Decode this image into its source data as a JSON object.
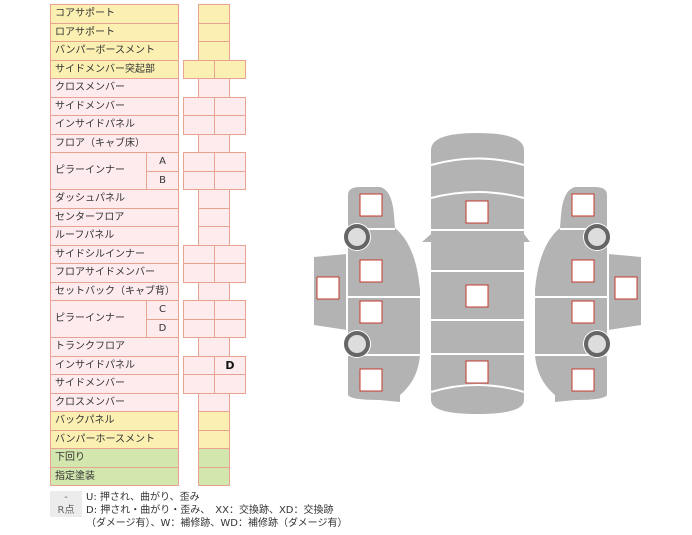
{
  "colors": {
    "front": "#fbf0b2",
    "body": "#fdebee",
    "other": "#d3e6ad",
    "border": "#e7a38f",
    "car": "#b3b3b3",
    "box_border": "#c0392b"
  },
  "rows": [
    {
      "label": "コアサポート",
      "color": "yellow",
      "cells": 1
    },
    {
      "label": "ロアサポート",
      "color": "yellow",
      "cells": 1
    },
    {
      "label": "バンパーボースメント",
      "color": "yellow",
      "cells": 1
    },
    {
      "label": "サイドメンバー突起部",
      "color": "yellow",
      "cells": 2
    },
    {
      "label": "クロスメンバー",
      "color": "pink",
      "cells": 1
    },
    {
      "label": "サイドメンバー",
      "color": "pink",
      "cells": 2
    },
    {
      "label": "インサイドパネル",
      "color": "pink",
      "cells": 2
    },
    {
      "label": "フロア（キャブ床）",
      "color": "pink",
      "cells": 1
    },
    {
      "label": "ピラーインナー",
      "sub": "A",
      "color": "pink",
      "cells": 2
    },
    {
      "label": "",
      "sub": "B",
      "color": "pink",
      "cells": 2
    },
    {
      "label": "ダッシュパネル",
      "color": "pink",
      "cells": 1
    },
    {
      "label": "センターフロア",
      "color": "pink",
      "cells": 1
    },
    {
      "label": "ルーフパネル",
      "color": "pink",
      "cells": 1
    },
    {
      "label": "サイドシルインナー",
      "color": "pink",
      "cells": 2
    },
    {
      "label": "フロアサイドメンバー",
      "color": "pink",
      "cells": 2
    },
    {
      "label": "セットバック（キャブ背）",
      "color": "pink",
      "cells": 1
    },
    {
      "label": "ピラーインナー",
      "sub": "C",
      "color": "pink",
      "cells": 2
    },
    {
      "label": "",
      "sub": "D",
      "color": "pink",
      "cells": 2
    },
    {
      "label": "トランクフロア",
      "color": "pink",
      "cells": 1
    },
    {
      "label": "インサイドパネル",
      "color": "pink",
      "cells": 2,
      "values": [
        "",
        "D"
      ]
    },
    {
      "label": "サイドメンバー",
      "color": "pink",
      "cells": 2
    },
    {
      "label": "クロスメンバー",
      "color": "pink",
      "cells": 1
    },
    {
      "label": "バックパネル",
      "color": "yellow",
      "cells": 1
    },
    {
      "label": "バンパーホースメント",
      "color": "yellow",
      "cells": 1
    },
    {
      "label": "下回り",
      "color": "green",
      "cells": 1
    },
    {
      "label": "指定塗装",
      "color": "green",
      "cells": 1
    }
  ],
  "legend": {
    "items": [
      {
        "key": "-",
        "text": "U: 押され、曲がり、歪み"
      },
      {
        "key": "R点",
        "text": "D: 押され・曲がり・歪み、　XX：交換跡、XD：交換跡"
      },
      {
        "key": "",
        "text": "（ダメージ有）、W：補修跡、WD：補修跡（ダメージ有）"
      }
    ]
  }
}
